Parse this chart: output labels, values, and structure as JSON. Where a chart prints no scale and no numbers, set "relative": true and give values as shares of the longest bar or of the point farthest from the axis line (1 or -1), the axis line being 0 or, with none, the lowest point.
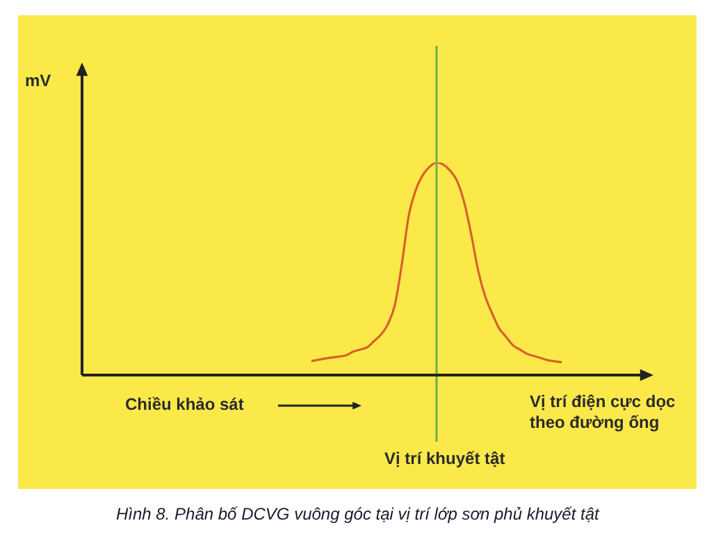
{
  "chart_data": {
    "type": "line",
    "relative": true,
    "title": "Hình 8. Phân bố DCVG vuông góc tại vị trí lớp sơn phủ khuyết tật",
    "ylabel": "mV",
    "xlabel": "Vị trí điện cực dọc theo đường ống",
    "annotations": [
      "Chiều khảo sát",
      "Vị trí khuyết tật"
    ],
    "categories": [
      null,
      null,
      null,
      null,
      null,
      null,
      null,
      null,
      null,
      null,
      null,
      null,
      null,
      null,
      null,
      null,
      null,
      null,
      null,
      null,
      null,
      null,
      null,
      null,
      null,
      null,
      null,
      null,
      null,
      null,
      null,
      null,
      null,
      null,
      null,
      null,
      null,
      null,
      null,
      null,
      null,
      null,
      null,
      null,
      null,
      null,
      null,
      null,
      null,
      null,
      null,
      null,
      null,
      null,
      null,
      null,
      null,
      null,
      null,
      null,
      null,
      null,
      null,
      null,
      null,
      null,
      null,
      null,
      null,
      null,
      null,
      null,
      null,
      null,
      null,
      null,
      null,
      null,
      null,
      null,
      null,
      null
    ],
    "series": [
      {
        "color": "#d9602c",
        "values": [
          null,
          null,
          null,
          null,
          null,
          null,
          null,
          null,
          null,
          null,
          null,
          null,
          null,
          null,
          null,
          null,
          null,
          null,
          null,
          null,
          null,
          null,
          null,
          null,
          null,
          null,
          null,
          null,
          null,
          null,
          null,
          null,
          null,
          0.066,
          0.072,
          0.078,
          0.083,
          0.087,
          0.093,
          0.11,
          0.12,
          0.13,
          0.16,
          0.19,
          0.24,
          0.33,
          0.52,
          0.75,
          0.87,
          0.94,
          0.98,
          1,
          0.99,
          0.96,
          0.91,
          0.81,
          0.66,
          0.49,
          0.37,
          0.29,
          0.22,
          0.18,
          0.14,
          0.12,
          0.1,
          0.09,
          0.08,
          0.07,
          0.065,
          0.06,
          null,
          null,
          null,
          null,
          null,
          null,
          null,
          null,
          null,
          null,
          null,
          null
        ]
      }
    ]
  }
}
